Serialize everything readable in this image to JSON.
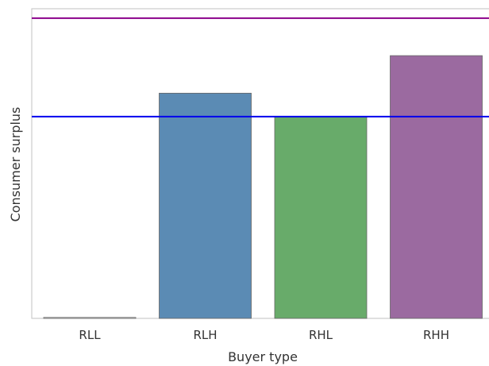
{
  "chart_data": {
    "type": "bar",
    "categories": [
      "RLL",
      "RLH",
      "RHL",
      "RHH"
    ],
    "values": [
      0.1,
      24.0,
      21.5,
      28.0
    ],
    "bar_colors": [
      "#dddddd",
      "#5b8bb4",
      "#68ab6a",
      "#9b6aa0"
    ],
    "bar_edge_color": "#666666",
    "hlines": [
      {
        "y": 21.5,
        "color": "#0000ee"
      },
      {
        "y": 32.0,
        "color": "#8b008b"
      }
    ],
    "ylim": [
      0,
      33
    ],
    "xlabel": "Buyer type",
    "ylabel": "Consumer surplus",
    "grid": false,
    "y_ticks_visible": false
  }
}
